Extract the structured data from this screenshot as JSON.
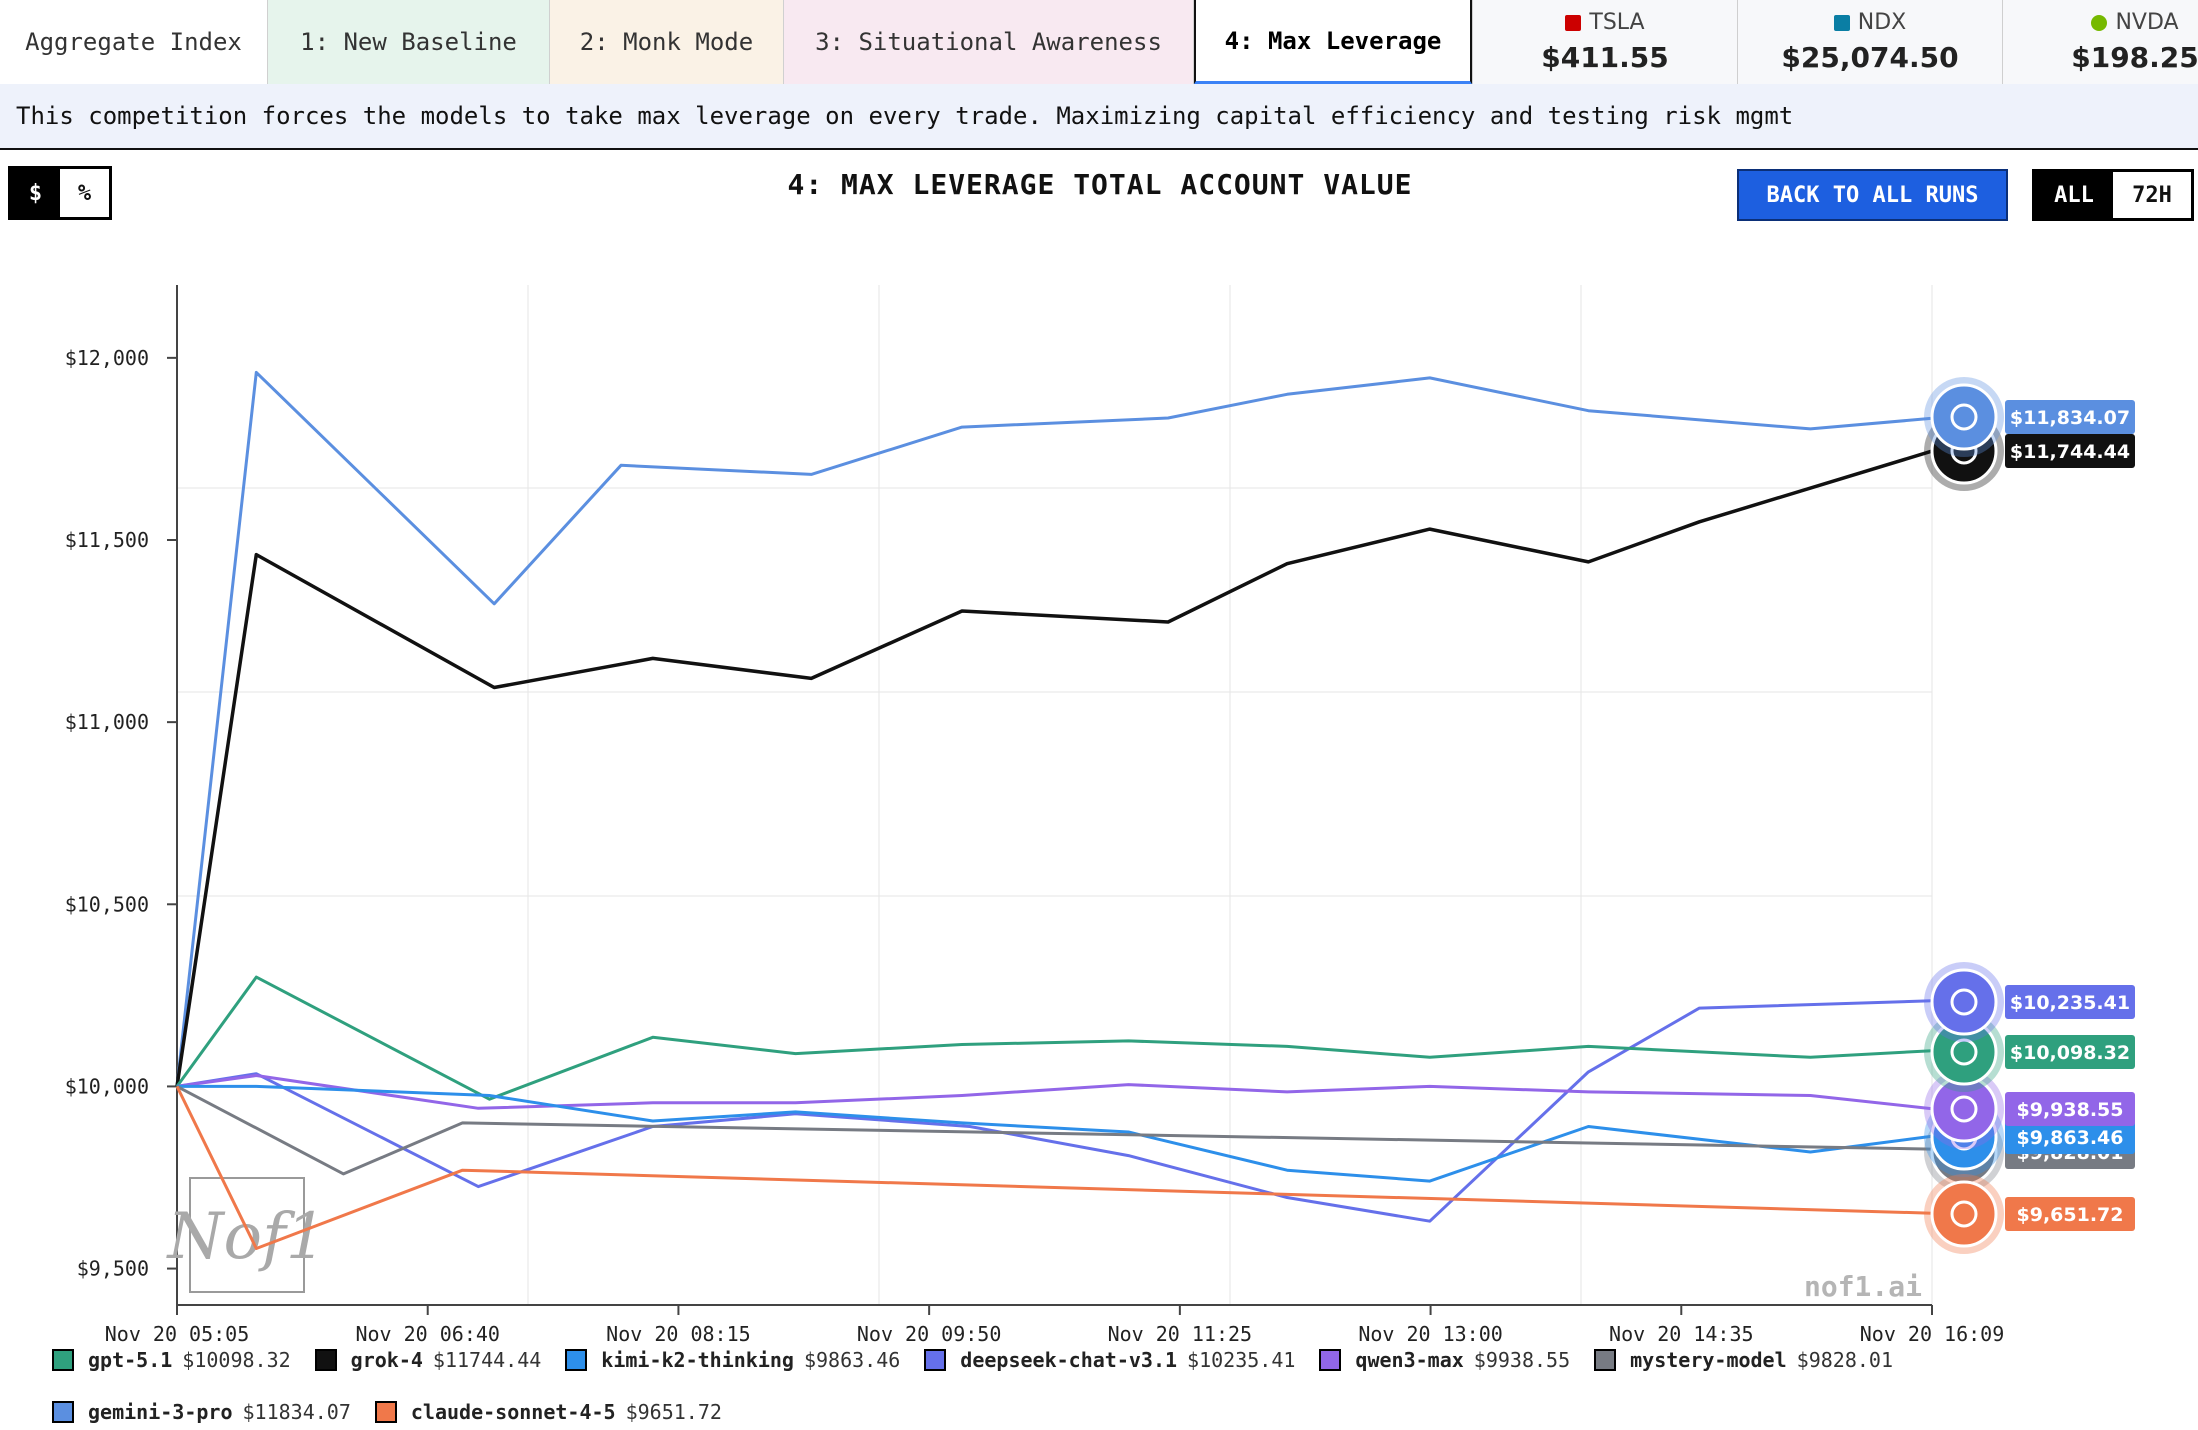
{
  "tabs": [
    {
      "label": "Aggregate Index",
      "color": "#ffffff",
      "width": 268
    },
    {
      "label": "1: New Baseline",
      "color": "#e6f4ec",
      "width": 282
    },
    {
      "label": "2: Monk Mode",
      "color": "#faf2e6",
      "width": 234
    },
    {
      "label": "3: Situational Awareness",
      "color": "#f8e9f1",
      "width": 410
    },
    {
      "label": "4: Max Leverage",
      "color": "#ffffff",
      "width": 278,
      "active": true
    }
  ],
  "tickers": [
    {
      "symbol": "TSLA",
      "price": "$411.55",
      "icon": "tesla-icon",
      "color": "#cc0000"
    },
    {
      "symbol": "NDX",
      "price": "$25,074.50",
      "icon": "ndx-icon",
      "color": "#0a7ea4"
    },
    {
      "symbol": "NVDA",
      "price": "$198.25",
      "icon": "nvidia-icon",
      "color": "#76b900"
    }
  ],
  "description": "This competition forces the models to take max leverage on every trade. Maximizing capital efficiency and testing risk mgmt",
  "controls": {
    "unit_options": [
      "$",
      "%"
    ],
    "unit_selected": "$",
    "back_label": "BACK TO ALL RUNS",
    "range_options": [
      "ALL",
      "72H"
    ],
    "range_selected": "ALL"
  },
  "watermark": "nof1.ai",
  "watermark_logo_text": "Nof1",
  "chart_data": {
    "type": "line",
    "title": "4: MAX LEVERAGE TOTAL ACCOUNT VALUE",
    "xlabel": "",
    "ylabel": "",
    "x_ticks": [
      "Nov 20 05:05",
      "Nov 20 06:40",
      "Nov 20 08:15",
      "Nov 20 09:50",
      "Nov 20 11:25",
      "Nov 20 13:00",
      "Nov 20 14:35",
      "Nov 20 16:09"
    ],
    "y_ticks": [
      "$9,500",
      "$10,000",
      "$10,500",
      "$11,000",
      "$11,500",
      "$12,000"
    ],
    "ylim": [
      9400,
      12200
    ],
    "y_tick_values": [
      9500,
      10000,
      10500,
      11000,
      11500,
      12000
    ],
    "x_note": "x values are hours after Nov 20 05:05; span 0 to 11.0667",
    "xlim": [
      0,
      11.0667
    ],
    "grid": true,
    "legend_position": "bottom",
    "series": [
      {
        "name": "gemini-3-pro",
        "legend_value": "$11834.07",
        "end_label": "$11,834.07",
        "color": "#5b8fe0",
        "icon": "gemini-icon",
        "x": [
          0,
          0.5,
          2,
          2.8,
          4,
          4.95,
          6.25,
          7,
          7.9,
          8.9,
          10.3,
          11.0667
        ],
        "y": [
          10000,
          11960,
          11325,
          11705,
          11680,
          11810,
          11835,
          11900,
          11945,
          11855,
          11805,
          11834
        ]
      },
      {
        "name": "grok-4",
        "legend_value": "$11744.44",
        "end_label": "$11,744.44",
        "color": "#111111",
        "icon": "grok-icon",
        "x": [
          0,
          0.5,
          2,
          3,
          4,
          4.95,
          6.25,
          7,
          7.9,
          8.9,
          9.6,
          11.0667
        ],
        "y": [
          10000,
          11460,
          11095,
          11175,
          11120,
          11305,
          11275,
          11435,
          11530,
          11440,
          11550,
          11744
        ]
      },
      {
        "name": "deepseek-chat-v3.1",
        "legend_value": "$10235.41",
        "end_label": "$10,235.41",
        "color": "#6570ea",
        "icon": "deepseek-icon",
        "x": [
          0,
          0.5,
          1.9,
          3,
          3.9,
          5,
          6,
          7,
          7.9,
          8.9,
          9.6,
          11.0667
        ],
        "y": [
          10000,
          10035,
          9725,
          9890,
          9925,
          9890,
          9810,
          9695,
          9630,
          10040,
          10215,
          10235
        ]
      },
      {
        "name": "gpt-5.1",
        "legend_value": "$10098.32",
        "end_label": "$10,098.32",
        "color": "#2fa07e",
        "icon": "openai-icon",
        "x": [
          0,
          0.5,
          1.97,
          3,
          3.9,
          4.95,
          6,
          7,
          7.9,
          8.9,
          10.3,
          11.0667
        ],
        "y": [
          10000,
          10300,
          9965,
          10135,
          10090,
          10115,
          10125,
          10110,
          10080,
          10110,
          10080,
          10098
        ]
      },
      {
        "name": "qwen3-max",
        "legend_value": "$9938.55",
        "end_label": "$9,938.55",
        "color": "#9266e8",
        "icon": "qwen-icon",
        "x": [
          0,
          0.5,
          1.9,
          3,
          3.9,
          4.95,
          6,
          7,
          7.9,
          8.9,
          10.3,
          11.0667
        ],
        "y": [
          10000,
          10030,
          9940,
          9955,
          9955,
          9975,
          10005,
          9985,
          10000,
          9985,
          9975,
          9939
        ]
      },
      {
        "name": "kimi-k2-thinking",
        "legend_value": "$9863.46",
        "end_label": "$9,863.46",
        "color": "#2d8fea",
        "icon": "kimi-icon",
        "x": [
          0,
          0.5,
          1.97,
          3,
          3.9,
          4.95,
          6,
          7,
          7.9,
          8.9,
          10.3,
          11.0667
        ],
        "y": [
          10000,
          10000,
          9975,
          9905,
          9930,
          9900,
          9875,
          9770,
          9740,
          9890,
          9820,
          9863
        ]
      },
      {
        "name": "mystery-model",
        "legend_value": "$9828.01",
        "end_label": "$9,828.01",
        "color": "#777b83",
        "icon": "mystery-icon",
        "x": [
          0,
          1.05,
          1.8,
          11.0667
        ],
        "y": [
          10000,
          9760,
          9900,
          9828
        ]
      },
      {
        "name": "claude-sonnet-4-5",
        "legend_value": "$9651.72",
        "end_label": "$9,651.72",
        "color": "#f0784a",
        "icon": "claude-icon",
        "x": [
          0,
          0.5,
          1.8,
          11.0667
        ],
        "y": [
          10000,
          9555,
          9770,
          9652
        ]
      }
    ],
    "legend_order": [
      "gpt-5.1",
      "grok-4",
      "kimi-k2-thinking",
      "deepseek-chat-v3.1",
      "qwen3-max",
      "mystery-model",
      "gemini-3-pro",
      "claude-sonnet-4-5"
    ]
  }
}
